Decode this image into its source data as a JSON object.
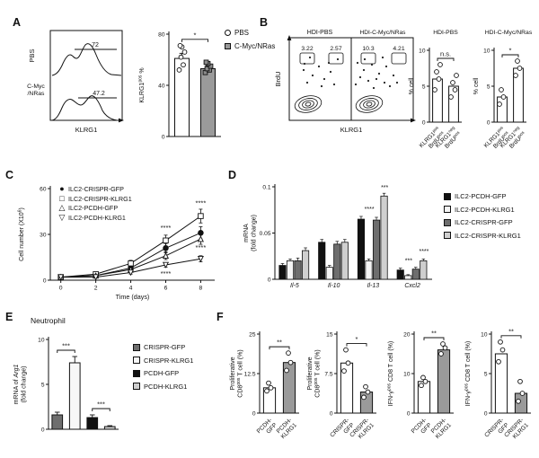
{
  "figure": {
    "panel_labels": {
      "A": "A",
      "B": "B",
      "C": "C",
      "D": "D",
      "E": "E",
      "F": "F"
    }
  },
  "colors": {
    "black": "#111111",
    "white_bar": "#ffffff",
    "gray_bar": "#9a9a9a",
    "dark_gray": "#6e6e6e",
    "light_gray": "#cfcfcf"
  },
  "flow_A": {
    "group_label_top": "PBS",
    "group_label_bottom": "C-Myc\n/NRas",
    "xlabel": "KLRG1",
    "gate_top": "72",
    "gate_bottom": "47.2"
  },
  "flow_B": {
    "title_left": "HDI-PBS",
    "title_right": "HDI-C-Myc/NRas",
    "ylabel": "BrdU",
    "xlabel": "KLRG1",
    "values_left": [
      "3.22",
      "2.57"
    ],
    "values_right": [
      "10.3",
      "4.21"
    ]
  },
  "chart_data": [
    {
      "id": "bar-A",
      "type": "bar",
      "ylabel": "KLRG1^pos^ %",
      "ylim": [
        0,
        80
      ],
      "yticks": [
        0,
        40,
        80
      ],
      "ytick_labels": [
        "0",
        "40",
        "80"
      ],
      "categories": [
        "PBS",
        "C-Myc/NRas"
      ],
      "values": [
        61,
        53
      ],
      "errors": [
        4,
        2
      ],
      "bar_colors": [
        "#ffffff",
        "#9a9a9a"
      ],
      "points": [
        [
          52,
          56,
          62,
          66,
          70,
          71
        ],
        [
          50,
          52,
          53,
          55,
          57,
          58
        ]
      ],
      "point_shapes": [
        "circle-open",
        "square-gray"
      ],
      "sig": [
        {
          "a": 0,
          "b": 1,
          "label": "*"
        }
      ],
      "hide_xlabels": true
    },
    {
      "id": "bar-B-pbs",
      "type": "bar",
      "title": "HDI-PBS",
      "ylabel": "% cell",
      "ylim": [
        0,
        10
      ],
      "yticks": [
        0,
        5,
        10
      ],
      "ytick_labels": [
        "0",
        "5",
        "10"
      ],
      "categories": [
        "KLRG1^pos^\nBrdU^pos^",
        "KLRG1^neg^\nBrdU^pos^"
      ],
      "values": [
        6,
        5
      ],
      "bar_colors": [
        "#ffffff",
        "#ffffff"
      ],
      "points": [
        [
          4.5,
          6,
          7,
          8
        ],
        [
          3.5,
          4.5,
          5.5,
          6.5
        ]
      ],
      "point_shapes": [
        "circle-open",
        "circle-open"
      ],
      "sig": [
        {
          "a": 0,
          "b": 1,
          "label": "n.s."
        }
      ],
      "xlabel_rotate": 45
    },
    {
      "id": "bar-B-cmyc",
      "type": "bar",
      "title": "HDI-C-Myc/NRas",
      "ylabel": "% cell",
      "ylim": [
        0,
        10
      ],
      "yticks": [
        0,
        5,
        10
      ],
      "ytick_labels": [
        "0",
        "5",
        "10"
      ],
      "categories": [
        "KLRG1^pos^\nBrdU^pos^",
        "KLRG1^neg^\nBrdU^pos^"
      ],
      "values": [
        3.5,
        7.5
      ],
      "bar_colors": [
        "#ffffff",
        "#ffffff"
      ],
      "points": [
        [
          2.5,
          3.5,
          4.5
        ],
        [
          6.5,
          7.5,
          8.5
        ]
      ],
      "point_shapes": [
        "circle-open",
        "circle-open"
      ],
      "sig": [
        {
          "a": 0,
          "b": 1,
          "label": "*"
        }
      ],
      "xlabel_rotate": 45
    },
    {
      "id": "line-C",
      "type": "line",
      "xlabel": "Time (days)",
      "ylabel": "Cell number (X10^6^)",
      "x": [
        0,
        2,
        4,
        6,
        8
      ],
      "xticks": [
        0,
        2,
        4,
        6,
        8
      ],
      "xlim": [
        -0.6,
        8.8
      ],
      "ylim": [
        0,
        60
      ],
      "yticks": [
        0,
        30,
        60
      ],
      "ytick_labels": [
        "0",
        "30",
        "60"
      ],
      "series": [
        {
          "name": "ILC2-CRISPR-GFP",
          "marker": "circle-filled",
          "glyph": "●",
          "values": [
            2,
            3,
            8,
            21,
            31
          ],
          "errors": [
            0.5,
            0.8,
            1.5,
            3,
            4
          ]
        },
        {
          "name": "ILC2-CRISPR-KLRG1",
          "marker": "square-open",
          "glyph": "□",
          "values": [
            2,
            4,
            11,
            26,
            42
          ],
          "errors": [
            0.5,
            0.8,
            2,
            3.5,
            4.5
          ]
        },
        {
          "name": "ILC2-PCDH-GFP",
          "marker": "triangle-open",
          "glyph": "△",
          "values": [
            2,
            3,
            7,
            16,
            27
          ],
          "errors": [
            0.5,
            0.8,
            1.5,
            2.5,
            3.5
          ]
        },
        {
          "name": "ILC2-PCDH-KLRG1",
          "marker": "triangle-down-open",
          "glyph": "▽",
          "values": [
            2,
            2,
            5,
            10,
            14
          ],
          "errors": [
            0.4,
            0.6,
            1,
            1.5,
            2
          ]
        }
      ],
      "annotations": [
        {
          "x": 6,
          "y": 33,
          "label": "****"
        },
        {
          "x": 6,
          "y": 3,
          "label": "****"
        },
        {
          "x": 8,
          "y": 49,
          "label": "****"
        },
        {
          "x": 8,
          "y": 20,
          "label": "****"
        }
      ]
    },
    {
      "id": "bars-D",
      "type": "bar-grouped",
      "ylabel": "mRNA\n(fold change)",
      "ylim": [
        0,
        0.1
      ],
      "yticks": [
        0,
        0.05,
        0.1
      ],
      "ytick_labels": [
        "0",
        "0.05",
        "0.1"
      ],
      "categories": [
        "Il-5",
        "Il-10",
        "Il-13",
        "Cxcl2"
      ],
      "xticks_italic": true,
      "series": [
        {
          "name": "ILC2-PCDH-GFP",
          "color": "#111111",
          "values": [
            0.015,
            0.04,
            0.065,
            0.01
          ],
          "errors": [
            0.002,
            0.003,
            0.003,
            0.002
          ]
        },
        {
          "name": "ILC2-PCDH-KLRG1",
          "color": "#f5f5f5",
          "values": [
            0.02,
            0.013,
            0.02,
            0.004
          ],
          "errors": [
            0.002,
            0.002,
            0.002,
            0.001
          ]
        },
        {
          "name": "ILC2-CRISPR-GFP",
          "color": "#6e6e6e",
          "values": [
            0.02,
            0.038,
            0.064,
            0.011
          ],
          "errors": [
            0.003,
            0.003,
            0.003,
            0.002
          ]
        },
        {
          "name": "ILC2-CRISPR-KLRG1",
          "color": "#cfcfcf",
          "values": [
            0.031,
            0.04,
            0.09,
            0.02
          ],
          "errors": [
            0.003,
            0.003,
            0.003,
            0.002
          ]
        }
      ],
      "annotations": [
        {
          "cat": 2,
          "series": 1,
          "label": "****",
          "ay": 0.074
        },
        {
          "cat": 2,
          "series": 3,
          "label": "***",
          "ay": 0.097
        },
        {
          "cat": 3,
          "series": 1,
          "label": "***",
          "ay": 0.018
        },
        {
          "cat": 3,
          "series": 3,
          "label": "****",
          "ay": 0.028
        }
      ]
    },
    {
      "id": "bars-E",
      "type": "bar",
      "title": "Neutrophil",
      "ylabel": "mRNA of ~Arg1~\n(fold change)",
      "ylim": [
        0,
        10
      ],
      "yticks": [
        0,
        5,
        10
      ],
      "ytick_labels": [
        "0",
        "5",
        "10"
      ],
      "categories": [
        "CRISPR-GFP",
        "CRISPR-KLRG1",
        "PCDH-GFP",
        "PCDH-KLRG1"
      ],
      "values": [
        1.6,
        7.4,
        1.3,
        0.3
      ],
      "errors": [
        0.3,
        0.7,
        0.3,
        0.1
      ],
      "bar_colors": [
        "#6e6e6e",
        "#f7f7f7",
        "#111111",
        "#cfcfcf"
      ],
      "hide_xlabels": true,
      "sig": [
        {
          "a": 0,
          "b": 1,
          "label": "***"
        },
        {
          "a": 2,
          "b": 3,
          "label": "***"
        }
      ]
    },
    {
      "id": "bar-F1",
      "type": "bar",
      "ylabel": "Proliferative\nCD8^pos^ T cell (%)",
      "ylim": [
        0,
        25
      ],
      "yticks": [
        0,
        12.5,
        25
      ],
      "ytick_labels": [
        "0",
        "12.5",
        "25"
      ],
      "categories": [
        "PCDH-\nGFP",
        "PCDH-\nKLRG1"
      ],
      "values": [
        8,
        16
      ],
      "bar_colors": [
        "#ffffff",
        "#9a9a9a"
      ],
      "points": [
        [
          7,
          8,
          9.5
        ],
        [
          13.5,
          16,
          19
        ]
      ],
      "point_shapes": [
        "circle-open",
        "circle-open"
      ],
      "sig": [
        {
          "a": 0,
          "b": 1,
          "label": "**"
        }
      ],
      "xlabel_rotate": 45
    },
    {
      "id": "bar-F2",
      "type": "bar",
      "ylabel": "Proliferative\nCD8^pos^ T cell (%)",
      "ylim": [
        0,
        15
      ],
      "yticks": [
        0,
        7.5,
        15
      ],
      "ytick_labels": [
        "0",
        "7.5",
        "15"
      ],
      "categories": [
        "CRISPR-\nGFP",
        "CRISPR-\nKLRG1"
      ],
      "values": [
        9.5,
        4
      ],
      "bar_colors": [
        "#ffffff",
        "#9a9a9a"
      ],
      "points": [
        [
          8,
          9.5,
          12
        ],
        [
          3,
          4,
          5
        ]
      ],
      "point_shapes": [
        "circle-open",
        "circle-open"
      ],
      "sig": [
        {
          "a": 0,
          "b": 1,
          "label": "*"
        }
      ],
      "xlabel_rotate": 45
    },
    {
      "id": "bar-F3",
      "type": "bar",
      "ylabel": "IFN-γ^pos^ CD8 T cell (%)",
      "ylim": [
        0,
        20
      ],
      "yticks": [
        0,
        10,
        20
      ],
      "ytick_labels": [
        "0",
        "10",
        "20"
      ],
      "categories": [
        "PCDH-\nGFP",
        "PCDH-\nKLRG1"
      ],
      "values": [
        8,
        16
      ],
      "bar_colors": [
        "#ffffff",
        "#9a9a9a"
      ],
      "points": [
        [
          7,
          8,
          9
        ],
        [
          15,
          16.5,
          17.5
        ]
      ],
      "point_shapes": [
        "circle-open",
        "circle-open"
      ],
      "sig": [
        {
          "a": 0,
          "b": 1,
          "label": "**"
        }
      ],
      "xlabel_rotate": 45
    },
    {
      "id": "bar-F4",
      "type": "bar",
      "ylabel": "IFN-γ^pos^ CD8 T cell (%)",
      "ylim": [
        0,
        10
      ],
      "yticks": [
        0,
        5,
        10
      ],
      "ytick_labels": [
        "0",
        "5",
        "10"
      ],
      "categories": [
        "CRISPR-\nGFP",
        "CRISPR-\nKLRG1"
      ],
      "values": [
        7.5,
        2.5
      ],
      "bar_colors": [
        "#ffffff",
        "#9a9a9a"
      ],
      "points": [
        [
          6.5,
          8,
          9
        ],
        [
          1.5,
          2.5,
          4
        ]
      ],
      "point_shapes": [
        "circle-open",
        "circle-open"
      ],
      "sig": [
        {
          "a": 0,
          "b": 1,
          "label": "**"
        }
      ],
      "xlabel_rotate": 45
    }
  ]
}
